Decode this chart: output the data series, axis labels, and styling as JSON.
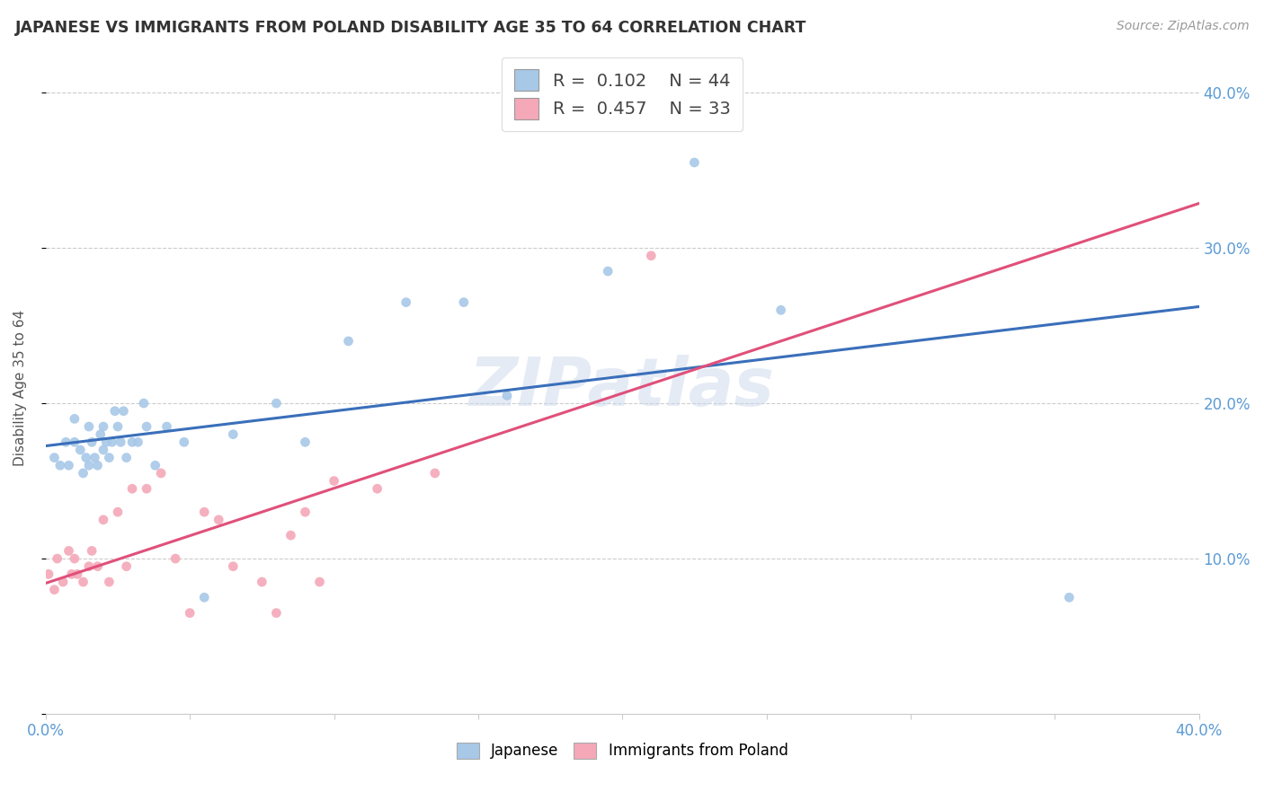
{
  "title": "JAPANESE VS IMMIGRANTS FROM POLAND DISABILITY AGE 35 TO 64 CORRELATION CHART",
  "source": "Source: ZipAtlas.com",
  "ylabel": "Disability Age 35 to 64",
  "xlim": [
    0.0,
    0.4
  ],
  "ylim": [
    0.0,
    0.42
  ],
  "xticks": [
    0.0,
    0.05,
    0.1,
    0.15,
    0.2,
    0.25,
    0.3,
    0.35,
    0.4
  ],
  "xtick_labels": [
    "0.0%",
    "",
    "",
    "",
    "",
    "",
    "",
    "",
    "40.0%"
  ],
  "yticks": [
    0.0,
    0.1,
    0.2,
    0.3,
    0.4
  ],
  "ytick_labels_right": [
    "",
    "10.0%",
    "20.0%",
    "30.0%",
    "40.0%"
  ],
  "legend_labels": [
    "Japanese",
    "Immigrants from Poland"
  ],
  "legend_r": [
    "0.102",
    "0.457"
  ],
  "legend_n": [
    "44",
    "33"
  ],
  "blue_color": "#a8c8e8",
  "pink_color": "#f4a8b8",
  "blue_line_color": "#3a6fba",
  "pink_line_color": "#e0507a",
  "watermark": "ZIPatlas",
  "japanese_x": [
    0.003,
    0.005,
    0.007,
    0.008,
    0.01,
    0.01,
    0.012,
    0.013,
    0.014,
    0.015,
    0.015,
    0.016,
    0.017,
    0.018,
    0.019,
    0.02,
    0.02,
    0.021,
    0.022,
    0.023,
    0.024,
    0.025,
    0.026,
    0.027,
    0.028,
    0.03,
    0.032,
    0.034,
    0.035,
    0.038,
    0.042,
    0.048,
    0.055,
    0.065,
    0.08,
    0.09,
    0.105,
    0.125,
    0.145,
    0.16,
    0.195,
    0.225,
    0.255,
    0.355
  ],
  "japanese_y": [
    0.165,
    0.16,
    0.175,
    0.16,
    0.175,
    0.19,
    0.17,
    0.155,
    0.165,
    0.16,
    0.185,
    0.175,
    0.165,
    0.16,
    0.18,
    0.17,
    0.185,
    0.175,
    0.165,
    0.175,
    0.195,
    0.185,
    0.175,
    0.195,
    0.165,
    0.175,
    0.175,
    0.2,
    0.185,
    0.16,
    0.185,
    0.175,
    0.075,
    0.18,
    0.2,
    0.175,
    0.24,
    0.265,
    0.265,
    0.205,
    0.285,
    0.355,
    0.26,
    0.075
  ],
  "polish_x": [
    0.001,
    0.003,
    0.004,
    0.006,
    0.008,
    0.009,
    0.01,
    0.011,
    0.013,
    0.015,
    0.016,
    0.018,
    0.02,
    0.022,
    0.025,
    0.028,
    0.03,
    0.035,
    0.04,
    0.045,
    0.05,
    0.055,
    0.06,
    0.065,
    0.075,
    0.08,
    0.085,
    0.09,
    0.095,
    0.1,
    0.115,
    0.135,
    0.21
  ],
  "polish_y": [
    0.09,
    0.08,
    0.1,
    0.085,
    0.105,
    0.09,
    0.1,
    0.09,
    0.085,
    0.095,
    0.105,
    0.095,
    0.125,
    0.085,
    0.13,
    0.095,
    0.145,
    0.145,
    0.155,
    0.1,
    0.065,
    0.13,
    0.125,
    0.095,
    0.085,
    0.065,
    0.115,
    0.13,
    0.085,
    0.15,
    0.145,
    0.155,
    0.295
  ]
}
